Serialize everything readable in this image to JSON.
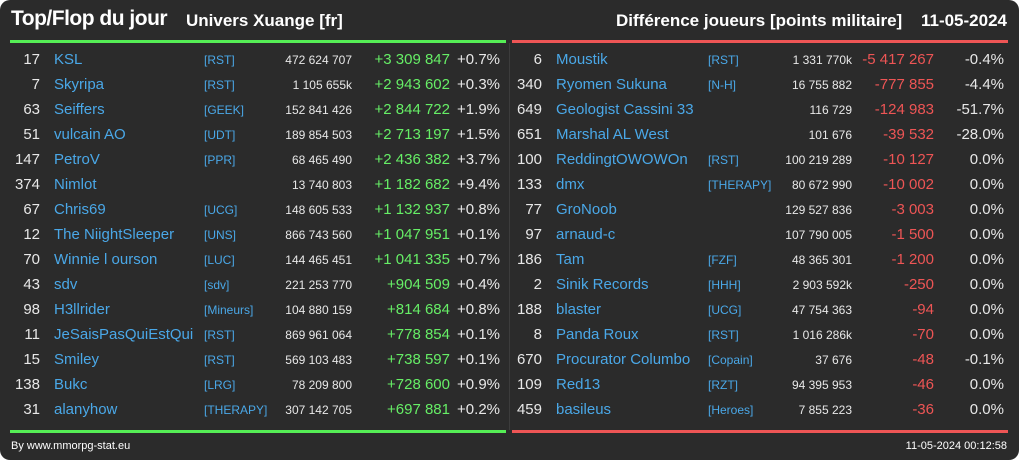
{
  "header": {
    "title": "Top/Flop du jour",
    "univers": "Univers Xuange [fr]",
    "metric": "Différence joueurs [points militaire]",
    "date": "11-05-2024"
  },
  "colors": {
    "top_accent": "#55ee55",
    "flop_accent": "#ee5555",
    "name": "#4aa8e8",
    "background": "#2b2b2b"
  },
  "top": [
    {
      "rank": "17",
      "name": "KSL",
      "alliance": "[RST]",
      "points": "472 624 707",
      "diff": "+3 309 847",
      "pct": "+0.7%"
    },
    {
      "rank": "7",
      "name": "Skyripa",
      "alliance": "[RST]",
      "points": "1 105 655k",
      "diff": "+2 943 602",
      "pct": "+0.3%"
    },
    {
      "rank": "63",
      "name": "Seiffers",
      "alliance": "[GEEK]",
      "points": "152 841 426",
      "diff": "+2 844 722",
      "pct": "+1.9%"
    },
    {
      "rank": "51",
      "name": "vulcain AO",
      "alliance": "[UDT]",
      "points": "189 854 503",
      "diff": "+2 713 197",
      "pct": "+1.5%"
    },
    {
      "rank": "147",
      "name": "PetroV",
      "alliance": "[PPR]",
      "points": "68 465 490",
      "diff": "+2 436 382",
      "pct": "+3.7%"
    },
    {
      "rank": "374",
      "name": "Nimlot",
      "alliance": "",
      "points": "13 740 803",
      "diff": "+1 182 682",
      "pct": "+9.4%"
    },
    {
      "rank": "67",
      "name": "Chris69",
      "alliance": "[UCG]",
      "points": "148 605 533",
      "diff": "+1 132 937",
      "pct": "+0.8%"
    },
    {
      "rank": "12",
      "name": "The NiightSleeper",
      "alliance": "[UNS]",
      "points": "866 743 560",
      "diff": "+1 047 951",
      "pct": "+0.1%"
    },
    {
      "rank": "70",
      "name": "Winnie l ourson",
      "alliance": "[LUC]",
      "points": "144 465 451",
      "diff": "+1 041 335",
      "pct": "+0.7%"
    },
    {
      "rank": "43",
      "name": "sdv",
      "alliance": "[sdv]",
      "points": "221 253 770",
      "diff": "+904 509",
      "pct": "+0.4%"
    },
    {
      "rank": "98",
      "name": "H3llrider",
      "alliance": "[Mineurs]",
      "points": "104 880 159",
      "diff": "+814 684",
      "pct": "+0.8%"
    },
    {
      "rank": "11",
      "name": "JeSaisPasQuiEstQui",
      "alliance": "[RST]",
      "points": "869 961 064",
      "diff": "+778 854",
      "pct": "+0.1%"
    },
    {
      "rank": "15",
      "name": "Smiley",
      "alliance": "[RST]",
      "points": "569 103 483",
      "diff": "+738 597",
      "pct": "+0.1%"
    },
    {
      "rank": "138",
      "name": "Bukc",
      "alliance": "[LRG]",
      "points": "78 209 800",
      "diff": "+728 600",
      "pct": "+0.9%"
    },
    {
      "rank": "31",
      "name": "alanyhow",
      "alliance": "[THERAPY]",
      "points": "307 142 705",
      "diff": "+697 881",
      "pct": "+0.2%"
    }
  ],
  "flop": [
    {
      "rank": "6",
      "name": "Moustik",
      "alliance": "[RST]",
      "points": "1 331 770k",
      "diff": "-5 417 267",
      "pct": "-0.4%"
    },
    {
      "rank": "340",
      "name": "Ryomen Sukuna",
      "alliance": "[N-H]",
      "points": "16 755 882",
      "diff": "-777 855",
      "pct": "-4.4%"
    },
    {
      "rank": "649",
      "name": "Geologist Cassini 33",
      "alliance": "",
      "points": "116 729",
      "diff": "-124 983",
      "pct": "-51.7%"
    },
    {
      "rank": "651",
      "name": "Marshal AL West",
      "alliance": "",
      "points": "101 676",
      "diff": "-39 532",
      "pct": "-28.0%"
    },
    {
      "rank": "100",
      "name": "ReddingtOWOWOn",
      "alliance": "[RST]",
      "points": "100 219 289",
      "diff": "-10 127",
      "pct": "0.0%"
    },
    {
      "rank": "133",
      "name": "dmx",
      "alliance": "[THERAPY]",
      "points": "80 672 990",
      "diff": "-10 002",
      "pct": "0.0%"
    },
    {
      "rank": "77",
      "name": "GroNoob",
      "alliance": "",
      "points": "129 527 836",
      "diff": "-3 003",
      "pct": "0.0%"
    },
    {
      "rank": "97",
      "name": "arnaud-c",
      "alliance": "",
      "points": "107 790 005",
      "diff": "-1 500",
      "pct": "0.0%"
    },
    {
      "rank": "186",
      "name": "Tam",
      "alliance": "[FZF]",
      "points": "48 365 301",
      "diff": "-1 200",
      "pct": "0.0%"
    },
    {
      "rank": "2",
      "name": "Sinik Records",
      "alliance": "[HHH]",
      "points": "2 903 592k",
      "diff": "-250",
      "pct": "0.0%"
    },
    {
      "rank": "188",
      "name": "blaster",
      "alliance": "[UCG]",
      "points": "47 754 363",
      "diff": "-94",
      "pct": "0.0%"
    },
    {
      "rank": "8",
      "name": "Panda Roux",
      "alliance": "[RST]",
      "points": "1 016 286k",
      "diff": "-70",
      "pct": "0.0%"
    },
    {
      "rank": "670",
      "name": "Procurator Columbo",
      "alliance": "[Copain]",
      "points": "37 676",
      "diff": "-48",
      "pct": "-0.1%"
    },
    {
      "rank": "109",
      "name": "Red13",
      "alliance": "[RZT]",
      "points": "94 395 953",
      "diff": "-46",
      "pct": "0.0%"
    },
    {
      "rank": "459",
      "name": "basileus",
      "alliance": "[Heroes]",
      "points": "7 855 223",
      "diff": "-36",
      "pct": "0.0%"
    }
  ],
  "footer": {
    "credit": "By www.mmorpg-stat.eu",
    "timestamp": "11-05-2024 00:12:58"
  }
}
